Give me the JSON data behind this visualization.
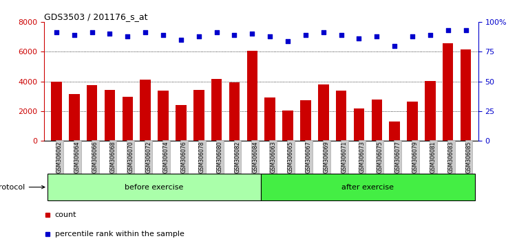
{
  "title": "GDS3503 / 201176_s_at",
  "categories": [
    "GSM306062",
    "GSM306064",
    "GSM306066",
    "GSM306068",
    "GSM306070",
    "GSM306072",
    "GSM306074",
    "GSM306076",
    "GSM306078",
    "GSM306080",
    "GSM306082",
    "GSM306084",
    "GSM306063",
    "GSM306065",
    "GSM306067",
    "GSM306069",
    "GSM306071",
    "GSM306073",
    "GSM306075",
    "GSM306077",
    "GSM306079",
    "GSM306081",
    "GSM306083",
    "GSM306085"
  ],
  "counts": [
    4000,
    3150,
    3750,
    3450,
    2950,
    4100,
    3400,
    2400,
    3450,
    4150,
    3950,
    6050,
    2900,
    2050,
    2750,
    3800,
    3400,
    2200,
    2800,
    1300,
    2650,
    4050,
    6550,
    6150
  ],
  "percentile_ranks": [
    91,
    89,
    91,
    90,
    88,
    91,
    89,
    85,
    88,
    91,
    89,
    90,
    88,
    84,
    89,
    91,
    89,
    86,
    88,
    80,
    88,
    89,
    93,
    93
  ],
  "bar_color": "#CC0000",
  "dot_color": "#0000CC",
  "left_ylim": [
    0,
    8000
  ],
  "right_ylim": [
    0,
    100
  ],
  "left_yticks": [
    0,
    2000,
    4000,
    6000,
    8000
  ],
  "right_yticks": [
    0,
    25,
    50,
    75,
    100
  ],
  "right_yticklabels": [
    "0",
    "25",
    "50",
    "75",
    "100%"
  ],
  "before_count": 12,
  "after_count": 12,
  "before_label": "before exercise",
  "after_label": "after exercise",
  "before_color": "#AAFFAA",
  "after_color": "#44EE44",
  "protocol_label": "protocol",
  "legend_count_label": "count",
  "legend_pct_label": "percentile rank within the sample",
  "grid_color": "black",
  "bg_color": "#FFFFFF",
  "tick_label_bg": "#CCCCCC",
  "bar_width": 0.6
}
